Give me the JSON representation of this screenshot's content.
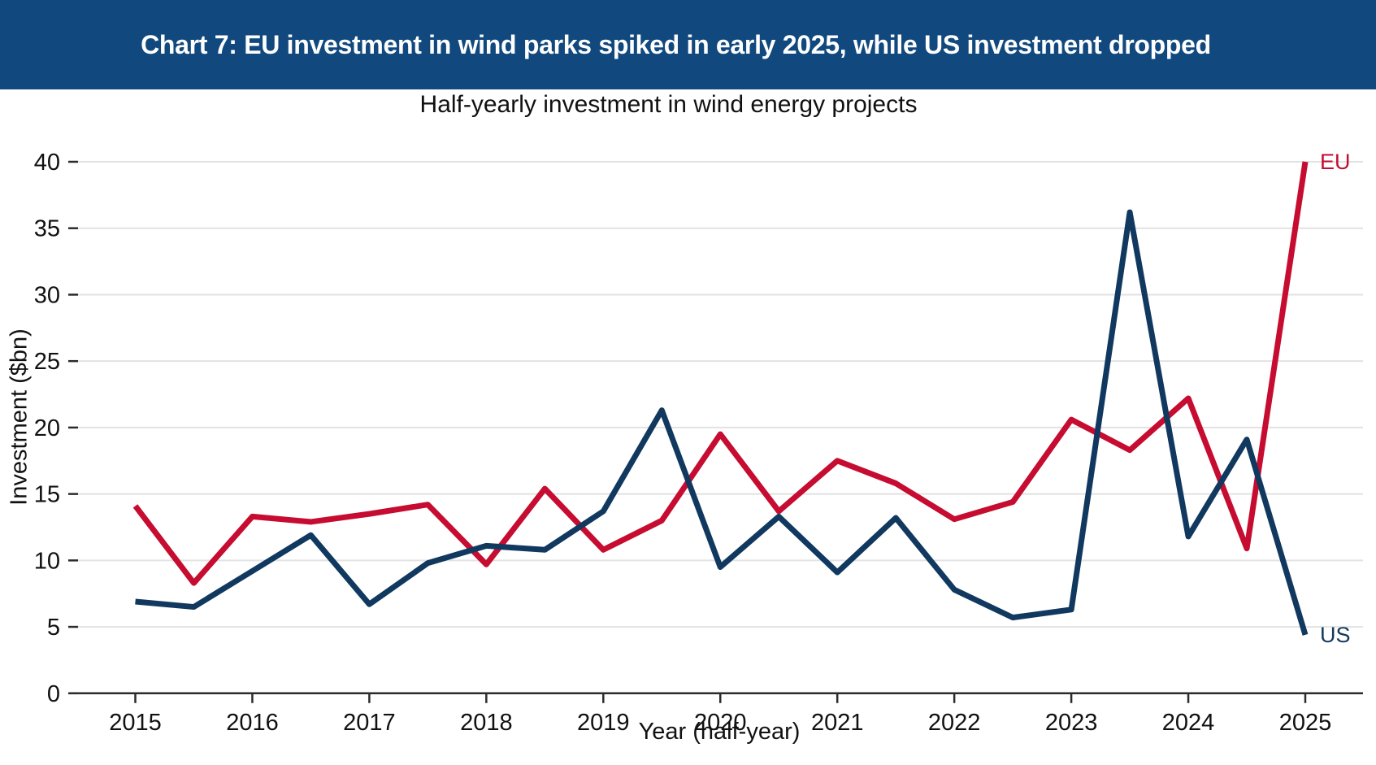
{
  "header": {
    "title": "Chart 7: EU investment in wind parks spiked in early 2025, while US investment dropped"
  },
  "colors": {
    "header_bg": "#11497E",
    "header_text": "#FFFFFF",
    "eu_line": "#C60C30",
    "us_line": "#11395F",
    "gridline": "#E2E2E2",
    "axis": "#2B2B2B",
    "text": "#111111"
  },
  "chart_data": {
    "type": "line",
    "title": "Half-yearly investment in wind energy projects",
    "xlabel": "Year (half-year)",
    "ylabel": "Investment ($bn)",
    "grid": "horizontal",
    "legend_position": "line-end-labels",
    "ylim": [
      0,
      40
    ],
    "yticks": [
      0,
      5,
      10,
      15,
      20,
      25,
      30,
      35,
      40
    ],
    "xtick_values": [
      2015,
      2016,
      2017,
      2018,
      2019,
      2020,
      2021,
      2022,
      2023,
      2024,
      2025
    ],
    "xtick_labels": [
      "2015",
      "2016",
      "2017",
      "2018",
      "2019",
      "2020",
      "2021",
      "2022",
      "2023",
      "2024",
      "2025"
    ],
    "x": [
      2015.0,
      2015.5,
      2016.0,
      2016.5,
      2017.0,
      2017.5,
      2018.0,
      2018.5,
      2019.0,
      2019.5,
      2020.0,
      2020.5,
      2021.0,
      2021.5,
      2022.0,
      2022.5,
      2023.0,
      2023.5,
      2024.0,
      2024.5,
      2025.0
    ],
    "series": [
      {
        "name": "EU",
        "color": "#C60C30",
        "values": [
          14.1,
          8.3,
          13.3,
          12.9,
          13.5,
          14.2,
          9.7,
          15.4,
          10.8,
          13.0,
          19.5,
          13.7,
          17.5,
          15.8,
          13.1,
          14.4,
          20.6,
          18.3,
          22.2,
          10.9,
          40.0
        ]
      },
      {
        "name": "US",
        "color": "#11395F",
        "values": [
          6.9,
          6.5,
          9.2,
          11.9,
          6.7,
          9.8,
          11.1,
          10.8,
          13.7,
          21.3,
          9.5,
          13.3,
          9.1,
          13.2,
          7.8,
          5.7,
          6.3,
          36.2,
          11.8,
          19.1,
          4.4
        ]
      }
    ]
  }
}
